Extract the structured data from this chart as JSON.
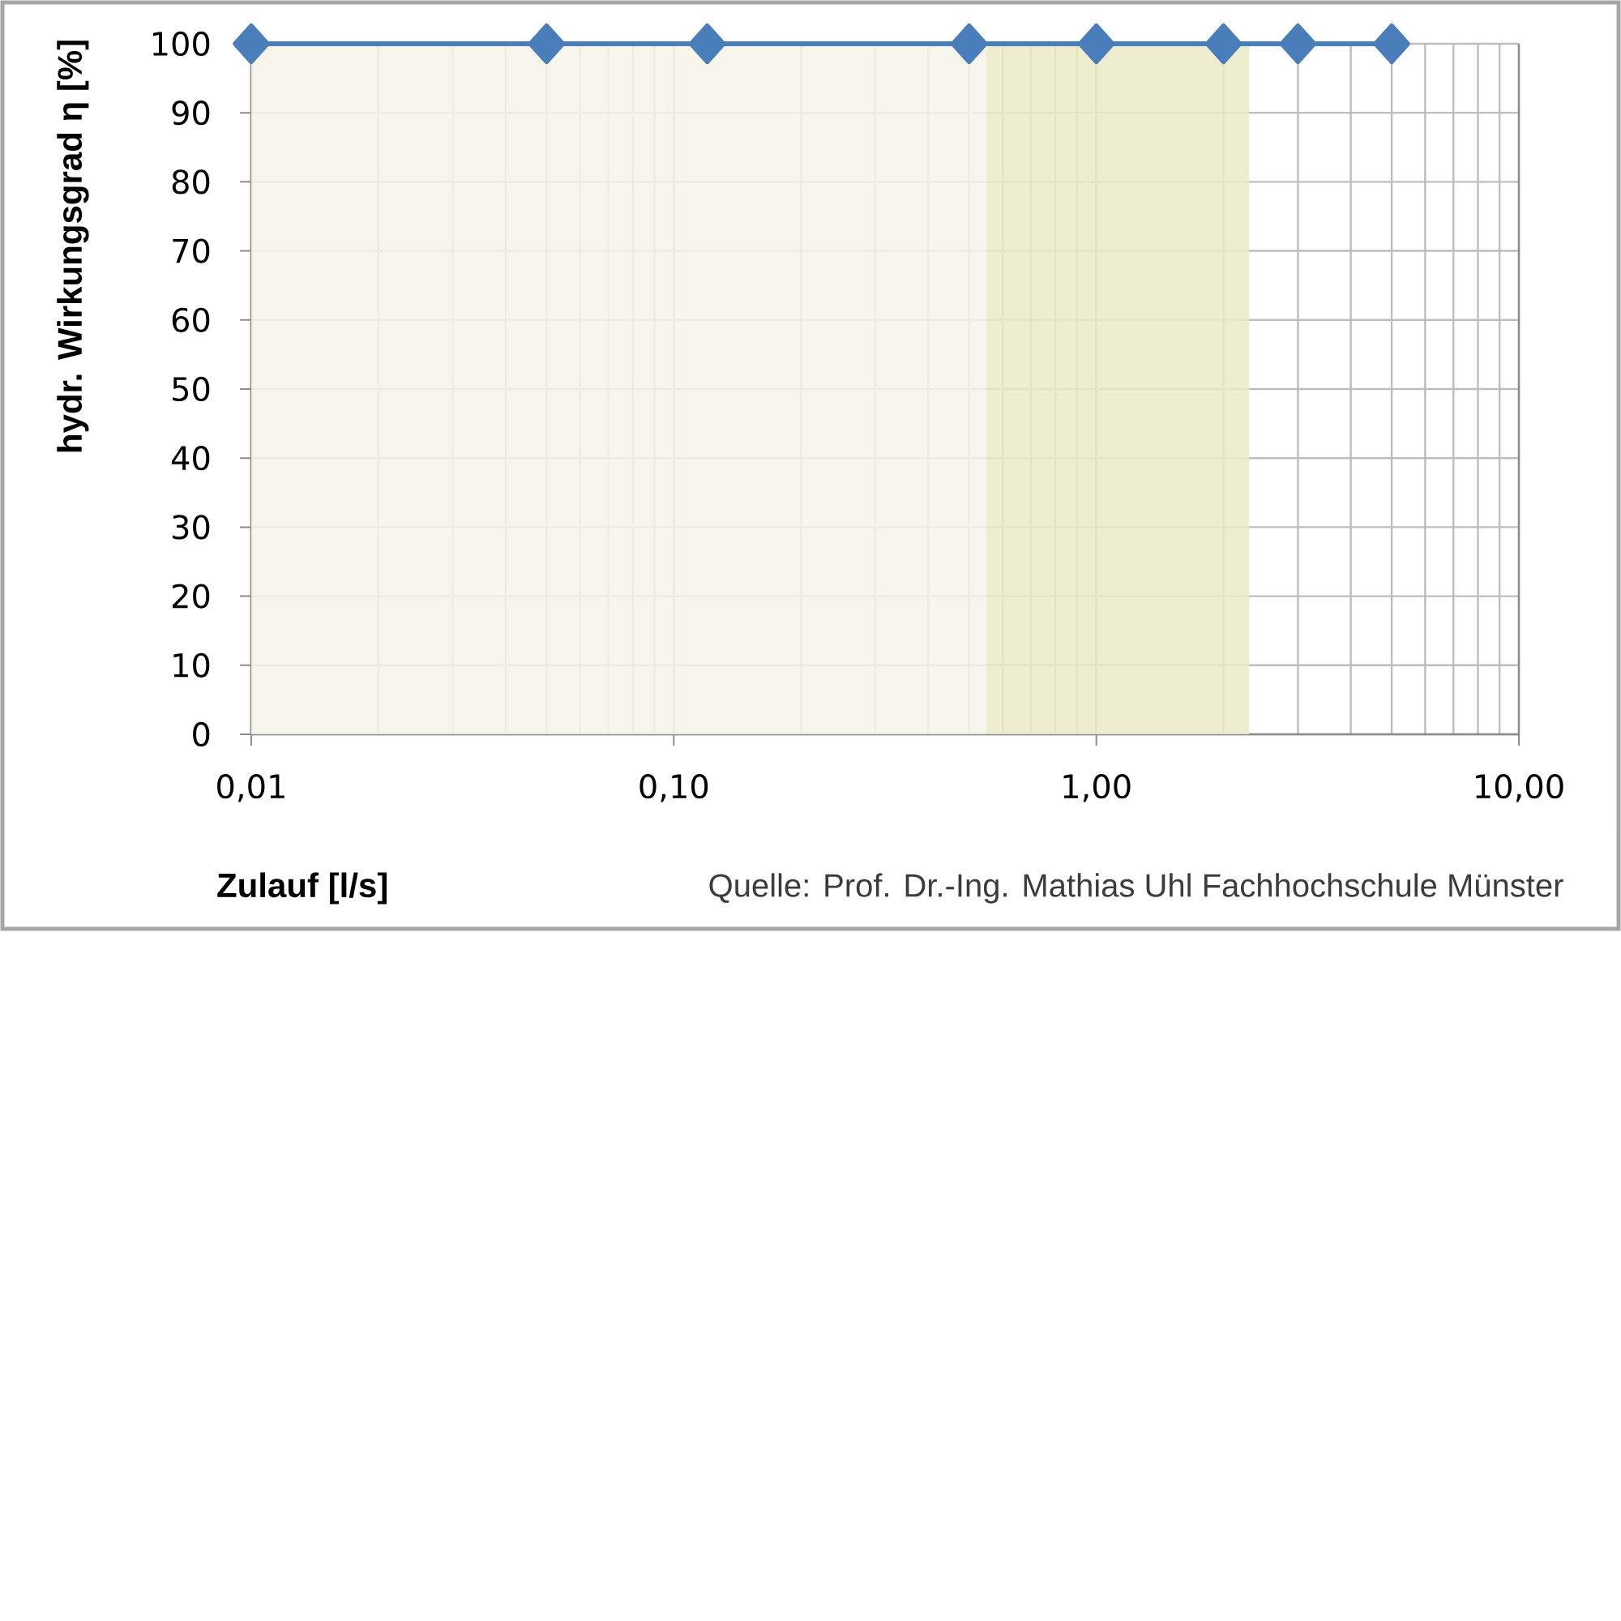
{
  "chart_data": {
    "type": "line",
    "xlabel": "Zulauf [l/s]",
    "ylabel": "hydr. Wirkungsgrad η [%]",
    "annotations": [
      "Quelle: Prof. Dr.-Ing. Mathias Uhl Fachhochschule Münster"
    ],
    "x": [
      0.01,
      0.05,
      0.12,
      0.5,
      1,
      2,
      3,
      5
    ],
    "series": [
      {
        "color": "#4a7ebb",
        "values": [
          100,
          100,
          100,
          100,
          100,
          100,
          100,
          100
        ]
      }
    ],
    "log": "x",
    "xlim": [
      0.01,
      10
    ],
    "xticks": [
      {
        "value": 0.01,
        "label": "0,01"
      },
      {
        "value": 0.1,
        "label": "0,10"
      },
      {
        "value": 1,
        "label": "1,00"
      },
      {
        "value": 10,
        "label": "10,00"
      }
    ],
    "ylim": [
      0,
      100
    ],
    "yticks": [
      0,
      10,
      20,
      30,
      40,
      50,
      60,
      70,
      80,
      90,
      100
    ],
    "grid": true,
    "marker": "diamond",
    "line_style": "solid",
    "bands": [
      {
        "axis": "x",
        "from": 0.01,
        "to": 0.55,
        "color": "#f5f5e9"
      },
      {
        "axis": "x",
        "from": 0.55,
        "to": 2.3,
        "color": "#ebeac8"
      }
    ]
  }
}
